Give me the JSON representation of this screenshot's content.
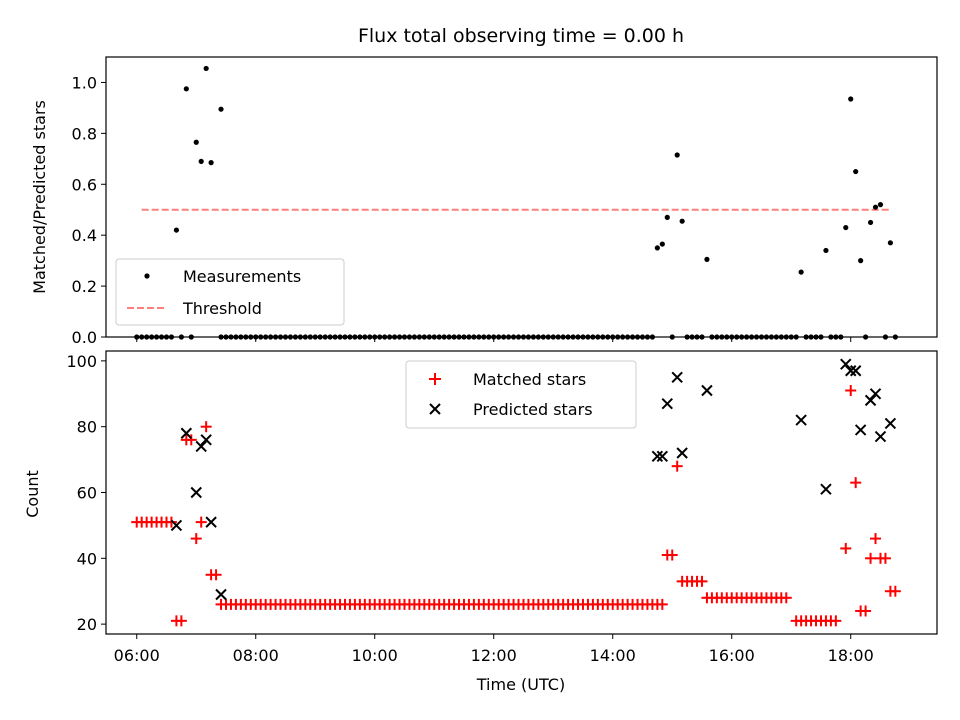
{
  "chart_data": [
    {
      "type": "scatter",
      "title": "Flux total observing time = 0.00 h",
      "ylabel": "Matched/Predicted stars",
      "xlim": [
        "05:29",
        "19:27"
      ],
      "ylim": [
        0,
        1.1
      ],
      "yticks": [
        "0.0",
        "0.2",
        "0.4",
        "0.6",
        "0.8",
        "1.0"
      ],
      "legend_placement": "lower-left",
      "series": [
        {
          "name": "Measurements",
          "marker": "dot",
          "color": "#000000",
          "points": [
            [
              "06:40",
              0.42
            ],
            [
              "06:50",
              0.975
            ],
            [
              "07:00",
              0.765
            ],
            [
              "07:05",
              0.69
            ],
            [
              "07:10",
              1.055
            ],
            [
              "07:15",
              0.685
            ],
            [
              "07:25",
              0.895
            ],
            [
              "14:45",
              0.35
            ],
            [
              "14:50",
              0.365
            ],
            [
              "14:55",
              0.47
            ],
            [
              "15:05",
              0.715
            ],
            [
              "15:10",
              0.455
            ],
            [
              "15:35",
              0.305
            ],
            [
              "17:10",
              0.255
            ],
            [
              "17:35",
              0.34
            ],
            [
              "17:55",
              0.43
            ],
            [
              "18:00",
              0.935
            ],
            [
              "18:05",
              0.65
            ],
            [
              "18:10",
              0.3
            ],
            [
              "18:20",
              0.45
            ],
            [
              "18:25",
              0.51
            ],
            [
              "18:30",
              0.52
            ],
            [
              "18:40",
              0.37
            ]
          ],
          "zero_points": [
            [
              "06:00",
              "06:35",
              5
            ],
            [
              "06:45",
              "06:45",
              5
            ],
            [
              "06:55",
              "06:55",
              5
            ],
            [
              "07:25",
              "14:40",
              5
            ],
            [
              "15:00",
              "15:00",
              5
            ],
            [
              "15:15",
              "15:30",
              5
            ],
            [
              "15:40",
              "17:05",
              5
            ],
            [
              "17:15",
              "17:30",
              5
            ],
            [
              "17:40",
              "17:50",
              5
            ],
            [
              "18:15",
              "18:15",
              5
            ],
            [
              "18:35",
              "18:35",
              5
            ],
            [
              "18:45",
              "18:45",
              5
            ]
          ]
        },
        {
          "name": "Threshold",
          "marker": "dashed-line",
          "color": "#ff7f7f",
          "x": [
            "06:05",
            "18:40"
          ],
          "y": [
            0.5,
            0.5
          ]
        }
      ]
    },
    {
      "type": "scatter",
      "xlabel": "Time (UTC)",
      "ylabel": "Count",
      "xlim": [
        "05:29",
        "19:27"
      ],
      "xticks": [
        "06:00",
        "08:00",
        "10:00",
        "12:00",
        "14:00",
        "16:00",
        "18:00"
      ],
      "ylim": [
        17,
        103
      ],
      "yticks": [
        "20",
        "40",
        "60",
        "80",
        "100"
      ],
      "legend_placement": "upper-center",
      "series": [
        {
          "name": "Matched stars",
          "marker": "plus",
          "color": "#ff0000",
          "runs": [
            [
              "06:00",
              "06:35",
              5,
              51
            ],
            [
              "07:25",
              "14:45",
              5,
              26
            ],
            [
              "15:10",
              "15:30",
              5,
              33
            ],
            [
              "15:35",
              "16:55",
              5,
              28
            ],
            [
              "17:05",
              "17:45",
              5,
              21
            ]
          ],
          "points": [
            [
              "06:40",
              21
            ],
            [
              "06:45",
              21
            ],
            [
              "06:50",
              76
            ],
            [
              "06:55",
              76
            ],
            [
              "07:00",
              46
            ],
            [
              "07:05",
              51
            ],
            [
              "07:10",
              80
            ],
            [
              "07:15",
              35
            ],
            [
              "07:20",
              35
            ],
            [
              "14:50",
              26
            ],
            [
              "14:55",
              41
            ],
            [
              "15:00",
              41
            ],
            [
              "15:05",
              68
            ],
            [
              "17:55",
              43
            ],
            [
              "18:00",
              91
            ],
            [
              "18:05",
              63
            ],
            [
              "18:10",
              24
            ],
            [
              "18:15",
              24
            ],
            [
              "18:20",
              40
            ],
            [
              "18:25",
              46
            ],
            [
              "18:30",
              40
            ],
            [
              "18:35",
              40
            ],
            [
              "18:40",
              30
            ],
            [
              "18:45",
              30
            ]
          ]
        },
        {
          "name": "Predicted stars",
          "marker": "x",
          "color": "#000000",
          "points": [
            [
              "06:40",
              50
            ],
            [
              "06:50",
              78
            ],
            [
              "07:00",
              60
            ],
            [
              "07:05",
              74
            ],
            [
              "07:10",
              76
            ],
            [
              "07:15",
              51
            ],
            [
              "07:25",
              29
            ],
            [
              "14:45",
              71
            ],
            [
              "14:50",
              71
            ],
            [
              "14:55",
              87
            ],
            [
              "15:05",
              95
            ],
            [
              "15:10",
              72
            ],
            [
              "15:35",
              91
            ],
            [
              "17:10",
              82
            ],
            [
              "17:35",
              61
            ],
            [
              "17:55",
              99
            ],
            [
              "18:00",
              97
            ],
            [
              "18:05",
              97
            ],
            [
              "18:10",
              79
            ],
            [
              "18:20",
              88
            ],
            [
              "18:25",
              90
            ],
            [
              "18:30",
              77
            ],
            [
              "18:40",
              81
            ]
          ]
        }
      ]
    }
  ]
}
